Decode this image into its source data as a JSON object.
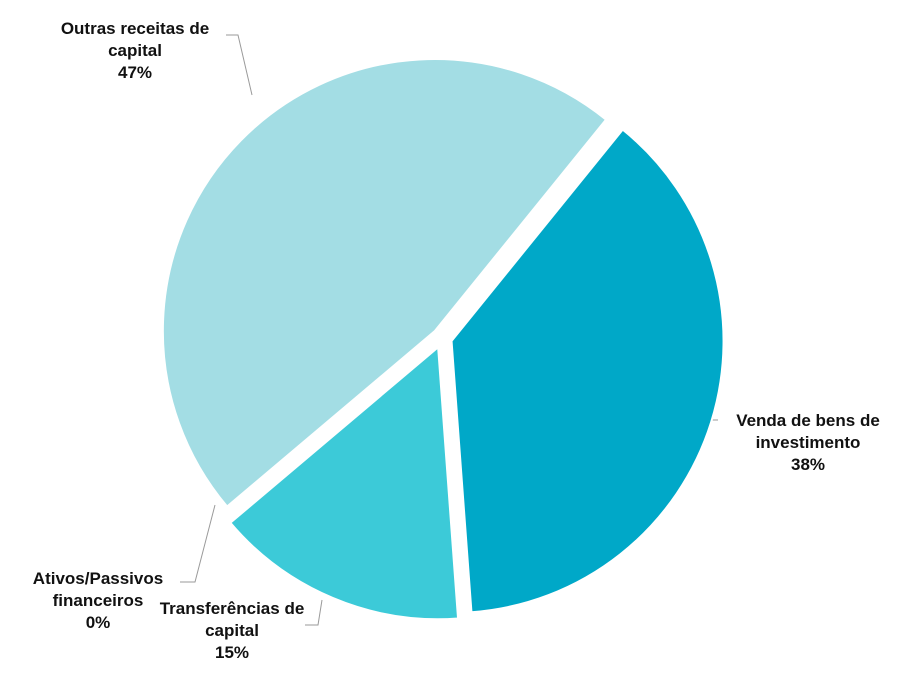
{
  "chart_data": {
    "type": "pie",
    "categories": [
      "Venda de bens de investimento",
      "Transferências de capital",
      "Ativos/Passivos financeiros",
      "Outras receitas de capital"
    ],
    "values": [
      38,
      15,
      0,
      47
    ],
    "value_labels": [
      "38%",
      "15%",
      "0%",
      "47%"
    ],
    "colors": [
      "#00a8c8",
      "#3ccad8",
      "#7fd6e0",
      "#a3dde4"
    ]
  }
}
